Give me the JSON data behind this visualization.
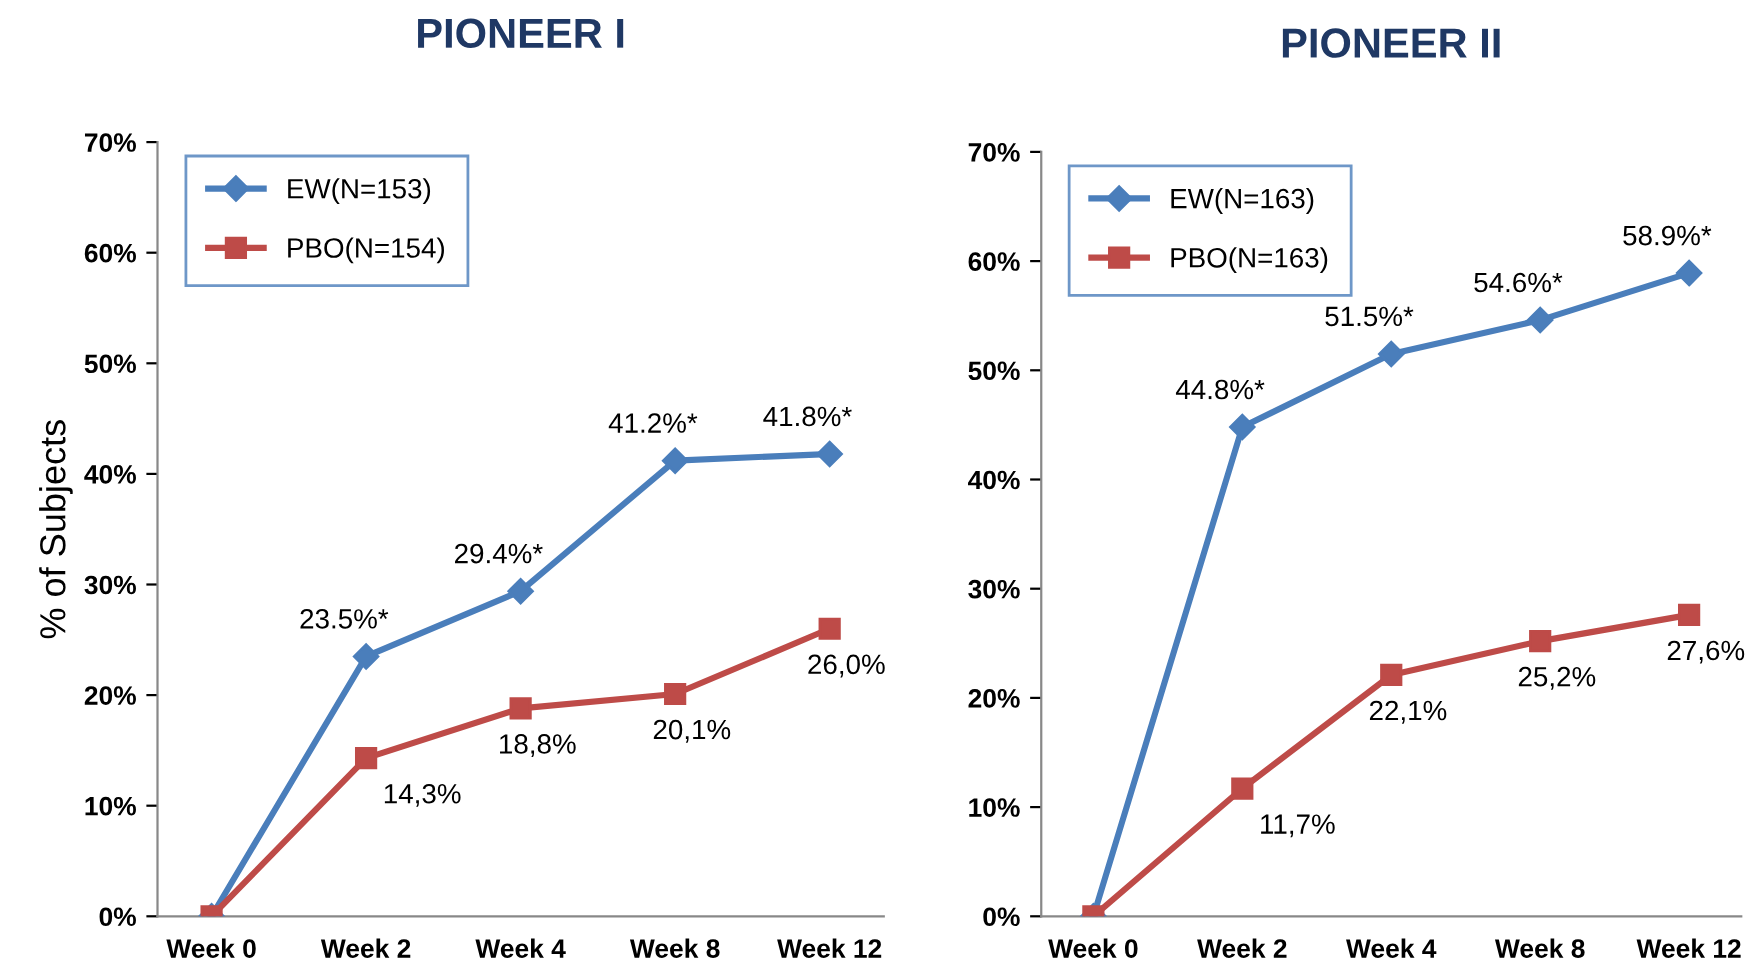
{
  "chart_data": [
    {
      "type": "line",
      "title": "PIONEER I",
      "ylabel": "% of Subjects",
      "categories": [
        "Week 0",
        "Week 2",
        "Week 4",
        "Week 8",
        "Week 12"
      ],
      "ylim": [
        0,
        70
      ],
      "yticks": [
        {
          "value": 0,
          "label": "0%"
        },
        {
          "value": 10,
          "label": "10%"
        },
        {
          "value": 20,
          "label": "20%"
        },
        {
          "value": 30,
          "label": "30%"
        },
        {
          "value": 40,
          "label": "40%"
        },
        {
          "value": 50,
          "label": "50%"
        },
        {
          "value": 60,
          "label": "60%"
        },
        {
          "value": 70,
          "label": "70%"
        }
      ],
      "legend": "top left",
      "grid": false,
      "series": [
        {
          "name": "EW(N=153)",
          "color": "#4a7ebb",
          "marker": "diamond",
          "values": [
            0,
            23.5,
            29.4,
            41.2,
            41.8
          ],
          "value_labels": [
            null,
            "23.5%*",
            "29.4%*",
            "41.2%*",
            "41.8%*"
          ]
        },
        {
          "name": "PBO(N=154)",
          "color": "#be4b48",
          "marker": "square",
          "values": [
            0,
            14.3,
            18.8,
            20.1,
            26.0
          ],
          "value_labels": [
            null,
            "14,3%",
            "18,8%",
            "20,1%",
            "26,0%"
          ]
        }
      ]
    },
    {
      "type": "line",
      "title": "PIONEER II",
      "categories": [
        "Week 0",
        "Week 2",
        "Week 4",
        "Week 8",
        "Week 12"
      ],
      "ylim": [
        0,
        70
      ],
      "yticks": [
        {
          "value": 0,
          "label": "0%"
        },
        {
          "value": 10,
          "label": "10%"
        },
        {
          "value": 20,
          "label": "20%"
        },
        {
          "value": 30,
          "label": "30%"
        },
        {
          "value": 40,
          "label": "40%"
        },
        {
          "value": 50,
          "label": "50%"
        },
        {
          "value": 60,
          "label": "60%"
        },
        {
          "value": 70,
          "label": "70%"
        }
      ],
      "legend": "top left",
      "grid": false,
      "series": [
        {
          "name": "EW(N=163)",
          "color": "#4a7ebb",
          "marker": "diamond",
          "values": [
            0,
            44.8,
            51.5,
            54.6,
            58.9
          ],
          "value_labels": [
            null,
            "44.8%*",
            "51.5%*",
            "54.6%*",
            "58.9%*"
          ]
        },
        {
          "name": "PBO(N=163)",
          "color": "#be4b48",
          "marker": "square",
          "values": [
            0,
            11.7,
            22.1,
            25.2,
            27.6
          ],
          "value_labels": [
            null,
            "11,7%",
            "22,1%",
            "25,2%",
            "27,6%"
          ]
        }
      ]
    }
  ]
}
